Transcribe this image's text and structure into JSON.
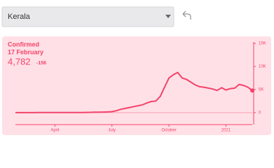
{
  "dropdown": {
    "selected": "Kerala"
  },
  "stat": {
    "label": "Confirmed",
    "date": "17 February",
    "value": "4,782",
    "delta": "-156"
  },
  "chart_data": {
    "type": "line",
    "color": "#f4436b",
    "categories": [
      null,
      null,
      null,
      null,
      null,
      null,
      null,
      null,
      null,
      "April",
      null,
      null,
      null,
      null,
      null,
      null,
      null,
      null,
      null,
      null,
      null,
      null,
      "July",
      null,
      null,
      null,
      null,
      null,
      null,
      null,
      null,
      null,
      null,
      null,
      null,
      "October",
      null,
      null,
      null,
      null,
      null,
      null,
      null,
      null,
      null,
      null,
      null,
      null,
      "2021",
      null,
      null,
      null,
      null,
      null,
      null
    ],
    "values": [
      0,
      0,
      0,
      0,
      0,
      10,
      15,
      20,
      25,
      15,
      10,
      5,
      5,
      5,
      10,
      20,
      40,
      60,
      80,
      100,
      120,
      150,
      200,
      400,
      700,
      900,
      1100,
      1300,
      1500,
      1700,
      2100,
      2400,
      2500,
      3500,
      5500,
      7500,
      8200,
      8700,
      7500,
      7200,
      6600,
      6000,
      5600,
      5500,
      5300,
      5100,
      4800,
      5400,
      4900,
      5200,
      5300,
      6100,
      5900,
      5500,
      4782
    ],
    "ylim": [
      -2600,
      15300
    ],
    "yticks": [
      0,
      {
        "value": 5000,
        "label": "5K"
      },
      {
        "value": 10000,
        "label": "10K"
      },
      {
        "value": 15000,
        "label": "15K"
      }
    ]
  }
}
